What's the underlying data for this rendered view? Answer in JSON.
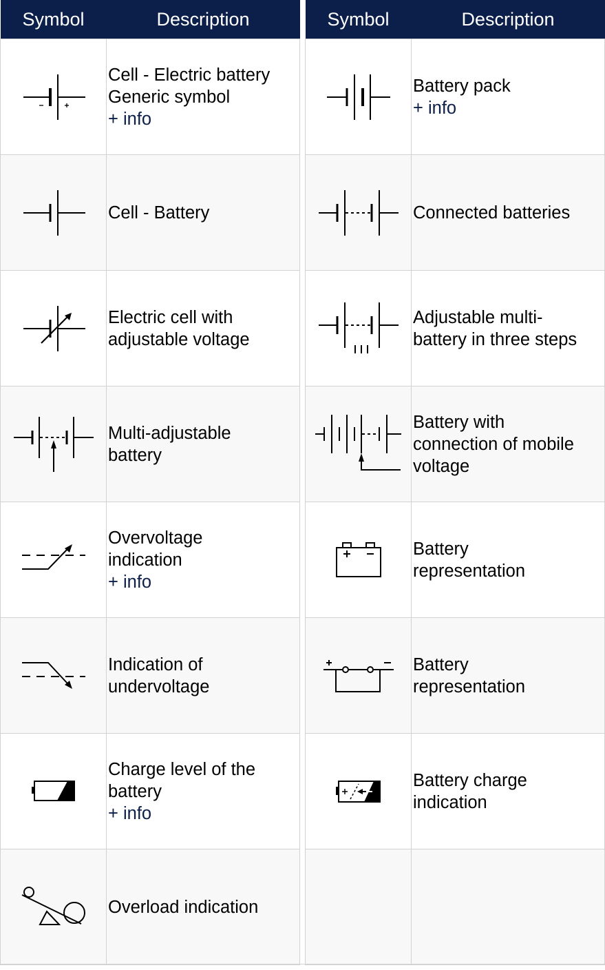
{
  "left_table": {
    "header": {
      "symbol": "Symbol",
      "description": "Description"
    },
    "rows": [
      {
        "lines": [
          "Cell - Electric battery",
          "Generic symbol"
        ],
        "info": "+ info",
        "icon": "generic-battery-cell-icon"
      },
      {
        "lines": [
          "Cell - Battery"
        ],
        "info": "",
        "icon": "battery-cell-icon"
      },
      {
        "lines": [
          "Electric cell with",
          "adjustable voltage"
        ],
        "info": "",
        "icon": "adjustable-cell-icon"
      },
      {
        "lines": [
          "Multi-adjustable",
          "battery"
        ],
        "info": "",
        "icon": "multi-adjustable-battery-icon"
      },
      {
        "lines": [
          "Overvoltage",
          "indication"
        ],
        "info": "+ info",
        "icon": "overvoltage-icon"
      },
      {
        "lines": [
          "Indication of",
          "undervoltage"
        ],
        "info": "",
        "icon": "undervoltage-icon"
      },
      {
        "lines": [
          "Charge level of the",
          "battery"
        ],
        "info": "+ info",
        "icon": "charge-level-icon"
      },
      {
        "lines": [
          "Overload indication"
        ],
        "info": "",
        "icon": "overload-icon"
      }
    ]
  },
  "right_table": {
    "header": {
      "symbol": "Symbol",
      "description": "Description"
    },
    "rows": [
      {
        "lines": [
          "Battery pack"
        ],
        "info": "+ info",
        "icon": "battery-pack-icon"
      },
      {
        "lines": [
          "Connected batteries"
        ],
        "info": "",
        "icon": "connected-batteries-icon"
      },
      {
        "lines": [
          "Adjustable multi-",
          "battery in three steps"
        ],
        "info": "",
        "icon": "three-step-battery-icon"
      },
      {
        "lines": [
          "Battery with",
          "connection of mobile",
          "voltage"
        ],
        "info": "",
        "icon": "mobile-voltage-battery-icon"
      },
      {
        "lines": [
          "Battery",
          "representation"
        ],
        "info": "",
        "icon": "battery-box-icon"
      },
      {
        "lines": [
          "Battery",
          "representation"
        ],
        "info": "",
        "icon": "battery-box-terminals-icon"
      },
      {
        "lines": [
          "Battery charge",
          "indication"
        ],
        "info": "",
        "icon": "battery-charge-icon"
      }
    ]
  },
  "colors": {
    "header_bg": "#0c1f4a",
    "header_text": "#ffffff",
    "info_text": "#0c1f4a",
    "alt_row_bg": "#f8f8f8",
    "border": "#d2d2d2"
  }
}
